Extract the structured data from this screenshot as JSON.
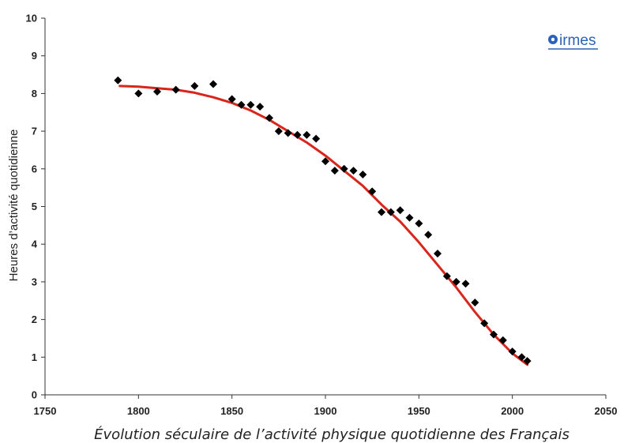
{
  "chart_data": {
    "type": "scatter",
    "title": "",
    "caption": "Évolution séculaire de l’activité physique quotidienne des Français",
    "xlabel": "",
    "ylabel": "Heures d’activité quotidienne",
    "xlim": [
      1750,
      2050
    ],
    "ylim": [
      0,
      10
    ],
    "x_ticks": [
      "1750",
      "1800",
      "1850",
      "1900",
      "1950",
      "2000",
      "2050"
    ],
    "y_ticks": [
      "0",
      "1",
      "2",
      "3",
      "4",
      "5",
      "6",
      "7",
      "8",
      "9",
      "10"
    ],
    "grid": false,
    "series": [
      {
        "marker": "diamond",
        "color": "#000000",
        "x": [
          1789,
          1800,
          1810,
          1820,
          1830,
          1840,
          1850,
          1855,
          1860,
          1865,
          1870,
          1875,
          1880,
          1885,
          1890,
          1895,
          1900,
          1905,
          1910,
          1915,
          1920,
          1925,
          1930,
          1935,
          1940,
          1945,
          1950,
          1955,
          1960,
          1965,
          1970,
          1975,
          1980,
          1985,
          1990,
          1995,
          2000,
          2005,
          2008
        ],
        "y": [
          8.35,
          8.0,
          8.05,
          8.1,
          8.2,
          8.25,
          7.85,
          7.7,
          7.7,
          7.65,
          7.35,
          7.0,
          6.95,
          6.9,
          6.9,
          6.8,
          6.2,
          5.95,
          6.0,
          5.95,
          5.85,
          5.4,
          4.85,
          4.85,
          4.9,
          4.7,
          4.55,
          4.25,
          3.75,
          3.15,
          3.0,
          2.95,
          2.45,
          1.9,
          1.6,
          1.45,
          1.15,
          1.0,
          0.9
        ]
      },
      {
        "type": "line",
        "color": "#d8261c",
        "x": [
          1790,
          1800,
          1810,
          1820,
          1830,
          1840,
          1850,
          1860,
          1870,
          1880,
          1890,
          1900,
          1910,
          1920,
          1930,
          1940,
          1950,
          1960,
          1970,
          1980,
          1990,
          2000,
          2008
        ],
        "y": [
          8.2,
          8.18,
          8.14,
          8.1,
          8.02,
          7.9,
          7.75,
          7.55,
          7.3,
          7.0,
          6.7,
          6.35,
          5.95,
          5.55,
          5.05,
          4.6,
          4.05,
          3.45,
          2.85,
          2.2,
          1.6,
          1.1,
          0.8
        ]
      }
    ]
  },
  "logo": {
    "name": "irmes-logo",
    "text": "irmes",
    "color": "#2a62b8"
  }
}
